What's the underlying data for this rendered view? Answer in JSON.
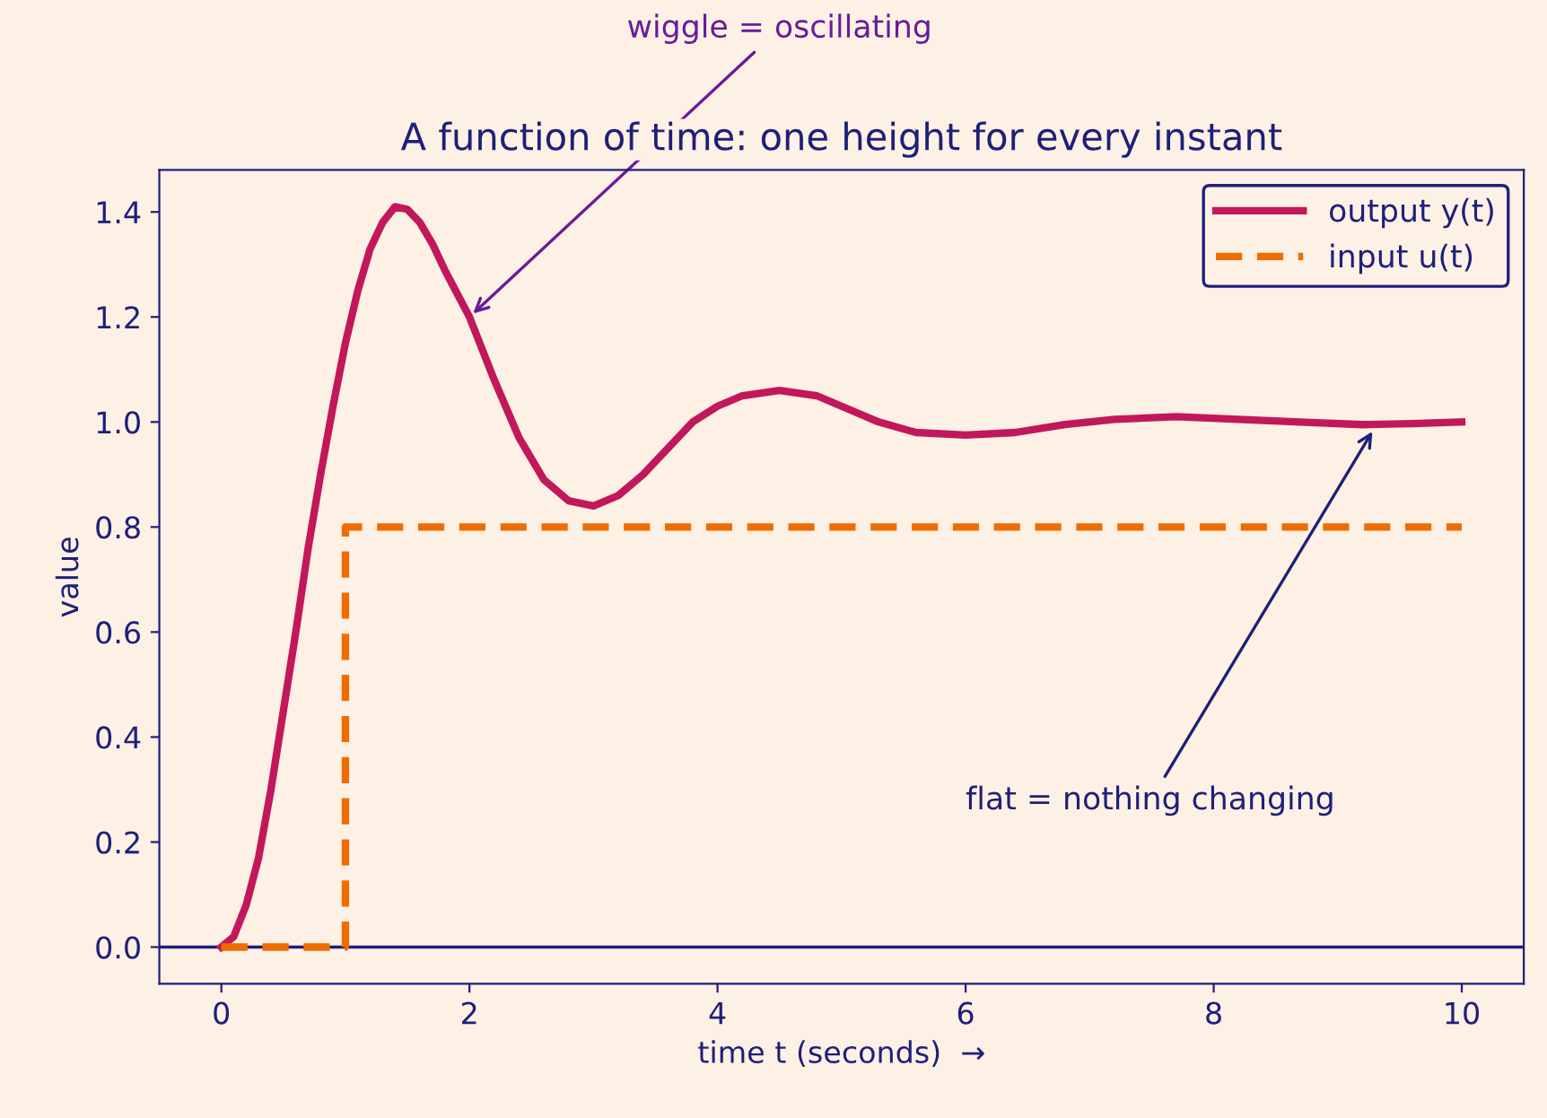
{
  "chart_data": {
    "type": "line",
    "title": "A function of time: one height for every instant",
    "xlabel": "time t (seconds)  →",
    "ylabel": "value",
    "xlim": [
      -0.5,
      10.5
    ],
    "xticks": [
      0,
      2,
      4,
      6,
      8,
      10
    ],
    "ylim": [
      -0.07,
      1.48
    ],
    "yticks": [
      {
        "value": 0,
        "label": "0.0"
      },
      0.2,
      0.4,
      0.6,
      0.8,
      {
        "value": 1,
        "label": "1.0"
      },
      1.2,
      1.4
    ],
    "series": [
      {
        "name": "output y(t)",
        "color": "#c2185b",
        "line_style": "solid",
        "x": [
          0,
          0.1,
          0.2,
          0.3,
          0.4,
          0.5,
          0.6,
          0.7,
          0.8,
          0.9,
          1.0,
          1.1,
          1.2,
          1.3,
          1.4,
          1.5,
          1.6,
          1.7,
          1.8,
          2.0,
          2.2,
          2.4,
          2.6,
          2.8,
          3.0,
          3.2,
          3.4,
          3.6,
          3.8,
          4.0,
          4.2,
          4.5,
          4.8,
          5.0,
          5.3,
          5.6,
          6.0,
          6.4,
          6.8,
          7.2,
          7.7,
          8.2,
          8.7,
          9.2,
          9.6,
          10
        ],
        "values": [
          0,
          0.02,
          0.08,
          0.17,
          0.3,
          0.45,
          0.6,
          0.76,
          0.9,
          1.03,
          1.15,
          1.25,
          1.33,
          1.38,
          1.41,
          1.405,
          1.38,
          1.34,
          1.29,
          1.2,
          1.08,
          0.97,
          0.89,
          0.85,
          0.84,
          0.86,
          0.9,
          0.95,
          1.0,
          1.03,
          1.05,
          1.06,
          1.05,
          1.03,
          1.0,
          0.98,
          0.975,
          0.98,
          0.995,
          1.005,
          1.01,
          1.005,
          1.0,
          0.995,
          0.997,
          1.0
        ]
      },
      {
        "name": "input u(t)",
        "color": "#ef6c00",
        "line_style": "dashed",
        "x": [
          0,
          1,
          1,
          10
        ],
        "values": [
          0,
          0,
          0.8,
          0.8
        ]
      }
    ],
    "ref_lines": [
      {
        "axis": "y",
        "value": 0,
        "color": "#1f1f7a",
        "line_style": "solid"
      }
    ],
    "annotations": [
      {
        "text": "wiggle = oscillating",
        "x": 2.0,
        "y": 1.2
      },
      {
        "text": "flat = nothing changing",
        "x": 9.3,
        "y": 0.99
      }
    ],
    "legend": "top right",
    "grid": false,
    "marker": "none"
  }
}
